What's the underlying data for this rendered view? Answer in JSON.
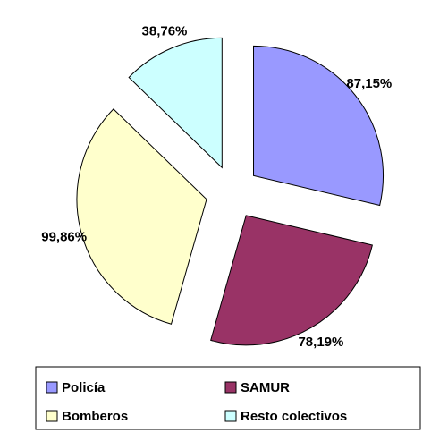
{
  "chart_data": {
    "type": "pie",
    "categories": [
      "Policía",
      "SAMUR",
      "Bomberos",
      "Resto colectivos"
    ],
    "values": [
      87.15,
      78.19,
      99.86,
      38.76
    ],
    "value_labels": [
      "87,15%",
      "78,19%",
      "99,86%",
      "38,76%"
    ],
    "colors": [
      "#9999ff",
      "#993366",
      "#ffffcc",
      "#ccffff"
    ],
    "legend": "bottom"
  }
}
